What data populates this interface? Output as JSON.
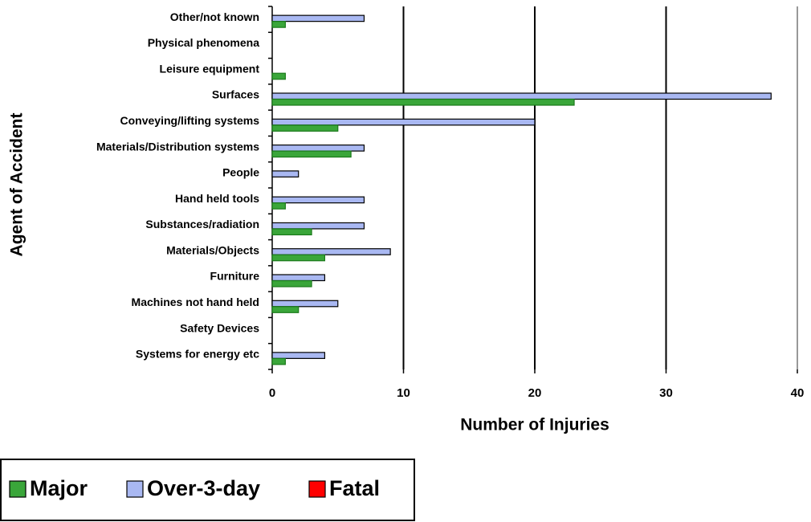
{
  "chart_data": {
    "type": "bar",
    "orientation": "horizontal",
    "xlabel": "Number of Injuries",
    "ylabel": "Agent of Accident",
    "categories": [
      "Other/not known",
      "Physical phenomena",
      "Leisure equipment",
      "Surfaces",
      "Conveying/lifting systems",
      "Materials/Distribution systems",
      "People",
      "Hand held tools",
      "Substances/radiation",
      "Materials/Objects",
      "Furniture",
      "Machines not hand held",
      "Safety Devices",
      "Systems for energy etc"
    ],
    "series": [
      {
        "name": "Major",
        "color": "#3aa63a",
        "values": [
          1,
          0,
          1,
          23,
          5,
          6,
          0,
          1,
          3,
          4,
          3,
          2,
          0,
          1
        ]
      },
      {
        "name": "Over-3-day",
        "color": "#a9b8f2",
        "values": [
          7,
          0,
          0,
          38,
          20,
          7,
          2,
          7,
          7,
          9,
          4,
          5,
          0,
          4
        ]
      },
      {
        "name": "Fatal",
        "color": "#ff0000",
        "values": [
          0,
          0,
          0,
          0,
          0,
          0,
          0,
          0,
          0,
          0,
          0,
          0,
          0,
          0
        ]
      }
    ],
    "xlim": [
      0,
      40
    ],
    "xticks": [
      0,
      10,
      20,
      30,
      40
    ],
    "grid": true,
    "legend": "bottom-left"
  }
}
